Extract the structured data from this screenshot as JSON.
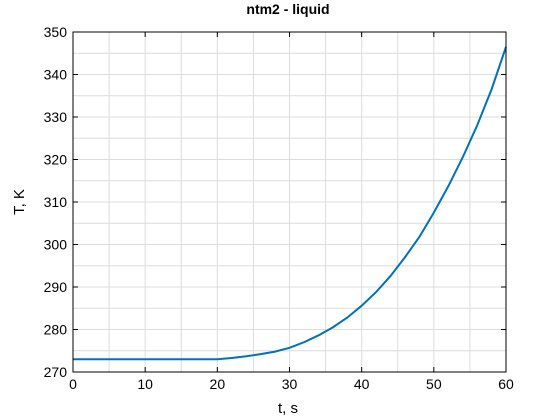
{
  "chart_data": {
    "type": "line",
    "title": "ntm2 - liquid",
    "xlabel": "t, s",
    "ylabel": "T, K",
    "xlim": [
      0,
      60
    ],
    "ylim": [
      270,
      350
    ],
    "xticks": [
      0,
      10,
      20,
      30,
      40,
      50,
      60
    ],
    "yticks": [
      270,
      280,
      290,
      300,
      310,
      320,
      330,
      340,
      350
    ],
    "grid": true,
    "series": [
      {
        "color": "#0072BD",
        "x": [
          0,
          5,
          10,
          15,
          20,
          22,
          24,
          26,
          28,
          30,
          32,
          34,
          36,
          38,
          40,
          42,
          44,
          46,
          48,
          50,
          52,
          54,
          56,
          58,
          60
        ],
        "y": [
          273,
          273,
          273,
          273,
          273,
          273.3,
          273.7,
          274.2,
          274.8,
          275.7,
          277.0,
          278.6,
          280.5,
          282.8,
          285.6,
          288.8,
          292.6,
          297.0,
          301.8,
          307.5,
          313.7,
          320.5,
          328.0,
          336.5,
          346.5
        ]
      }
    ]
  }
}
